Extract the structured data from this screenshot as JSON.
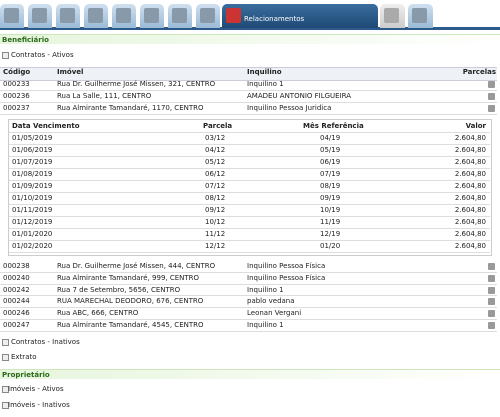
{
  "tabs": {
    "active": "Relacionamentos"
  },
  "beneficiario": {
    "title": "Beneficiário",
    "contratos_ativos": {
      "label": "Contratos - Ativos",
      "columns": [
        "Código",
        "Imóvel",
        "Inquilino",
        "Parcelas"
      ],
      "rows_before": [
        [
          "000233",
          "Rua Dr. Guilherme José Missen, 321, CENTRO",
          "Inquilino 1"
        ],
        [
          "000236",
          "Rua La Salle, 111, CENTRO",
          "AMADEU ANTONIO FILGUEIRA"
        ],
        [
          "000237",
          "Rua Almirante Tamandaré, 1170, CENTRO",
          "Inquilino Pessoa Juridica"
        ]
      ],
      "parcelas": {
        "columns": [
          "Data Vencimento",
          "Parcela",
          "Mês Referência",
          "Valor"
        ],
        "rows": [
          [
            "01/05/2019",
            "03/12",
            "04/19",
            "2.604,80"
          ],
          [
            "01/06/2019",
            "04/12",
            "05/19",
            "2.604,80"
          ],
          [
            "01/07/2019",
            "05/12",
            "06/19",
            "2.604,80"
          ],
          [
            "01/08/2019",
            "06/12",
            "07/19",
            "2.604,80"
          ],
          [
            "01/09/2019",
            "07/12",
            "08/19",
            "2.604,80"
          ],
          [
            "01/10/2019",
            "08/12",
            "09/19",
            "2.604,80"
          ],
          [
            "01/11/2019",
            "09/12",
            "10/19",
            "2.604,80"
          ],
          [
            "01/12/2019",
            "10/12",
            "11/19",
            "2.604,80"
          ],
          [
            "01/01/2020",
            "11/12",
            "12/19",
            "2.604,80"
          ],
          [
            "01/02/2020",
            "12/12",
            "01/20",
            "2.604,80"
          ]
        ]
      },
      "rows_after": [
        [
          "000238",
          "Rua Dr. Guilherme José Missen, 444, CENTRO",
          "Inquilino Pessoa Física"
        ],
        [
          "000240",
          "Rua Almirante Tamandaré, 999, CENTRO",
          "Inquilino Pessoa Física"
        ],
        [
          "000242",
          "Rua 7 de Setembro, 5656, CENTRO",
          "Inquilino 1"
        ],
        [
          "000244",
          "RUA MARECHAL DEODORO, 676, CENTRO",
          "pablo vedana"
        ],
        [
          "000246",
          "Rua ABC, 666, CENTRO",
          "Leonan Vergani"
        ],
        [
          "000247",
          "Rua Almirante Tamandaré, 4545, CENTRO",
          "Inquilino 1"
        ]
      ]
    },
    "contratos_inativos": "Contratos - Inativos",
    "extrato": "Extrato"
  },
  "proprietario": {
    "title": "Proprietário",
    "imoveis_ativos": "Imóveis - Ativos",
    "imoveis_inativos": "Imóveis - Inativos"
  }
}
